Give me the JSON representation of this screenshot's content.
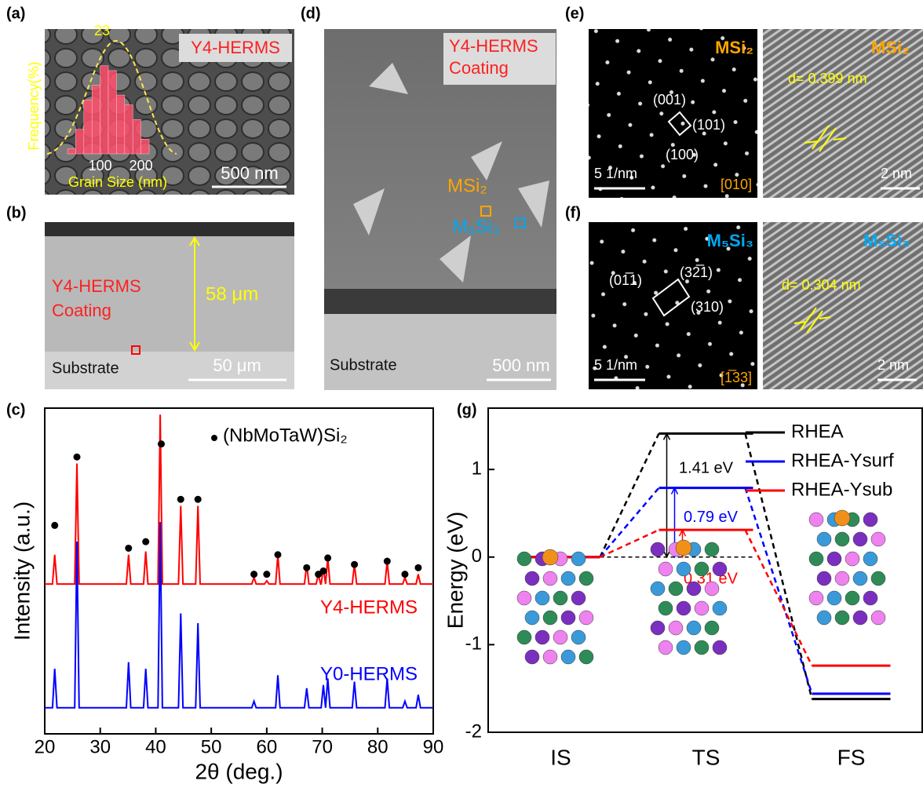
{
  "panels": {
    "a": {
      "label": "(a)",
      "sample": "Y4-HERMS",
      "scale_bar": "500 nm"
    },
    "b": {
      "label": "(b)",
      "sample": "Y4-HERMS",
      "coating": "Coating",
      "thickness": "58 μm",
      "substrate": "Substrate",
      "scale_bar": "50 μm"
    },
    "c": {
      "label": "(c)"
    },
    "d": {
      "label": "(d)",
      "sample": "Y4-HERMS",
      "coating": "Coating",
      "phase_1": "MSi₂",
      "phase_2": "M₅Si₃",
      "substrate": "Substrate",
      "scale_bar": "500 nm"
    },
    "e": {
      "label": "(e)",
      "saed_phase": "MSi₂",
      "spots": [
        "(001)",
        "(101)",
        "(100)"
      ],
      "scale_saed": "5 1/nm",
      "zone_axis": "[010]",
      "hrtem_phase": "MSi₂",
      "d_spacing": "d= 0.399 nm",
      "scale_hrtem": "2 nm"
    },
    "f": {
      "label": "(f)",
      "saed_phase": "M₅Si₃",
      "spots": [
        "(01̅1)",
        "(32̅1)",
        "(310)"
      ],
      "scale_saed": "5 1/nm",
      "zone_axis": "[1̅33]",
      "hrtem_phase": "M₅Si₃",
      "d_spacing": "d= 0.304 nm",
      "scale_hrtem": "2 nm"
    },
    "g": {
      "label": "(g)"
    }
  },
  "chart_data": [
    {
      "type": "histogram",
      "xlabel": "Grain Size (nm)",
      "ylabel": "Frequency(%)",
      "bins": [
        20,
        40,
        60,
        80,
        100,
        120,
        140,
        160,
        180,
        200,
        220
      ],
      "values": [
        1,
        5,
        11,
        14,
        18,
        17,
        12,
        10,
        7,
        3
      ],
      "color": "#ff4d6a",
      "xlim": [
        20,
        220
      ],
      "xticks": [
        100,
        200
      ],
      "ylim": [
        0,
        25
      ],
      "peak_label": 23
    },
    {
      "type": "line",
      "xlabel": "2θ (deg.)",
      "ylabel": "Intensity (a.u.)",
      "xlim": [
        20,
        90
      ],
      "xticks": [
        20,
        30,
        40,
        50,
        60,
        70,
        80,
        90
      ],
      "ylim": [
        0,
        100
      ],
      "series": [
        {
          "name": "Y4-HERMS",
          "color": "#ff0000",
          "x": [
            20,
            21.4,
            21.8,
            22.2,
            25.4,
            25.8,
            26.2,
            34.7,
            35.1,
            35.5,
            37.8,
            38.2,
            38.6,
            40.4,
            40.8,
            41.2,
            44.1,
            44.5,
            44.9,
            47.2,
            47.6,
            48,
            57.3,
            57.7,
            58.1,
            59.6,
            60,
            60.4,
            61.6,
            62,
            62.4,
            66.8,
            67.2,
            67.6,
            68.9,
            69.3,
            69.7,
            69.8,
            70.2,
            70.6,
            70.6,
            71,
            71.4,
            75.4,
            75.8,
            76.2,
            81.3,
            81.7,
            82.1,
            84.5,
            84.9,
            85.3,
            86.9,
            87.3,
            87.7,
            90
          ],
          "values": [
            46,
            46,
            55,
            46,
            46,
            83,
            46,
            46,
            55,
            46,
            46,
            56,
            46,
            46,
            98,
            46,
            46,
            70,
            46,
            46,
            70,
            46,
            46,
            48,
            46,
            46,
            47,
            46,
            46,
            55,
            46,
            46,
            52,
            46,
            46,
            49,
            46,
            46,
            51,
            46,
            46,
            54,
            46,
            46,
            52,
            46,
            46,
            53,
            46,
            46,
            48,
            46,
            46,
            49,
            46,
            46
          ]
        },
        {
          "name": "Y0-HERMS",
          "color": "#0000ff",
          "x": [
            20,
            21.4,
            21.8,
            22.2,
            25.4,
            25.8,
            26.2,
            34.7,
            35.1,
            35.5,
            37.8,
            38.2,
            38.6,
            40.4,
            40.8,
            41.2,
            44.1,
            44.5,
            44.9,
            47.2,
            47.6,
            48,
            57.3,
            57.7,
            58.1,
            61.6,
            62,
            62.4,
            66.8,
            67.2,
            67.6,
            69.8,
            70.2,
            70.6,
            70.6,
            71,
            71.4,
            75.4,
            75.8,
            76.2,
            81.3,
            81.7,
            82.1,
            84.5,
            84.9,
            85.3,
            86.9,
            87.3,
            87.7,
            90
          ],
          "values": [
            8,
            8,
            20,
            8,
            8,
            59,
            8,
            8,
            22,
            8,
            8,
            20,
            8,
            8,
            65,
            8,
            8,
            37,
            8,
            8,
            34,
            8,
            8,
            10,
            8,
            8,
            18,
            8,
            8,
            14,
            8,
            8,
            15,
            8,
            8,
            17,
            8,
            8,
            16,
            8,
            8,
            17,
            8,
            8,
            10,
            8,
            8,
            12,
            8,
            8
          ]
        },
        {
          "name": "(NbMoTaW)Si₂",
          "color": "#000000",
          "marker": "dot",
          "x": [
            21.8,
            25.8,
            35.1,
            38.2,
            41,
            44.5,
            47.6,
            57.7,
            60,
            62,
            67.2,
            69.3,
            70.2,
            71,
            75.8,
            81.7,
            84.9,
            87.3
          ],
          "values": [
            64,
            85,
            57,
            59,
            89,
            72,
            72,
            49,
            49,
            55,
            51,
            49,
            50,
            54,
            52,
            53,
            49,
            51
          ]
        }
      ]
    },
    {
      "type": "energy_profile",
      "ylabel": "Energy (eV)",
      "categories": [
        "IS",
        "TS",
        "FS"
      ],
      "ylim": [
        -2,
        1.7
      ],
      "yticks": [
        -2,
        -1,
        0,
        1
      ],
      "series": [
        {
          "name": "RHEA",
          "color": "#000000",
          "values": [
            0,
            1.41,
            -1.62
          ],
          "value_labels": [
            null,
            "1.41 eV",
            null
          ]
        },
        {
          "name": "RHEA-Ysurf",
          "color": "#0000ff",
          "values": [
            0,
            0.79,
            -1.56
          ],
          "value_labels": [
            null,
            "0.79 eV",
            null
          ]
        },
        {
          "name": "RHEA-Ysub",
          "color": "#ff0000",
          "values": [
            0,
            0.31,
            -1.24
          ],
          "value_labels": [
            null,
            "0.31 eV",
            null
          ]
        }
      ]
    }
  ]
}
